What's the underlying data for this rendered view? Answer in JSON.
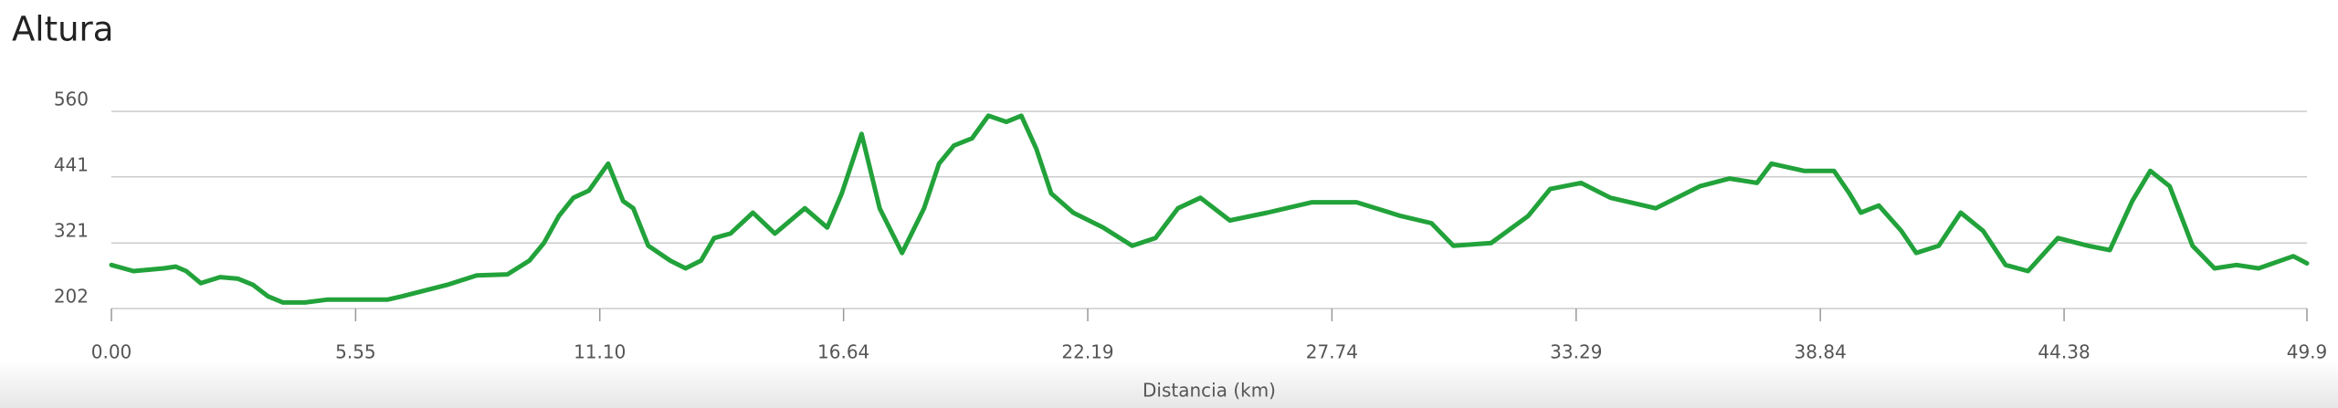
{
  "chart_data": {
    "type": "line",
    "title": "Altura",
    "x_label": "Distancia (km)",
    "color": "#22a23a",
    "grid": true,
    "xlim": [
      0,
      49.9
    ],
    "ylim": [
      202,
      560
    ],
    "yticks": [
      202,
      321,
      441,
      560
    ],
    "xticks": [
      {
        "value": 0,
        "label": "0.00"
      },
      5.55,
      {
        "value": 11.1,
        "label": "11.10"
      },
      16.64,
      22.19,
      27.74,
      33.29,
      38.84,
      44.38,
      49.9
    ],
    "x": [
      0,
      0.5,
      1.19,
      1.46,
      1.7,
      2.03,
      2.47,
      2.88,
      3.22,
      3.56,
      3.9,
      4.4,
      4.9,
      6.27,
      6.6,
      7.63,
      8.3,
      9,
      9.5,
      9.83,
      10.17,
      10.5,
      10.85,
      11.29,
      11.63,
      11.86,
      12.2,
      12.7,
      13.05,
      13.4,
      13.7,
      14.07,
      14.58,
      15.08,
      15.76,
      16.27,
      16.6,
      17.05,
      17.46,
      17.97,
      18.47,
      18.81,
      19.15,
      19.56,
      19.93,
      20.34,
      20.68,
      21.02,
      21.36,
      21.86,
      22.54,
      23.2,
      23.73,
      24.24,
      24.75,
      25.42,
      26.27,
      27.29,
      28.3,
      29.3,
      30,
      30.5,
      31.36,
      32.2,
      32.7,
      33.4,
      34.07,
      35.1,
      36.1,
      36.78,
      37.4,
      37.73,
      38.47,
      39.15,
      39.5,
      39.76,
      40.17,
      40.68,
      41.02,
      41.53,
      42.03,
      42.54,
      43.05,
      43.56,
      44.24,
      44.92,
      45.42,
      45.93,
      46.34,
      46.78,
      47.3,
      47.8,
      48.3,
      48.8,
      49.59,
      49.9
    ],
    "values": [
      281,
      270,
      275,
      278,
      270,
      248,
      259,
      256,
      245,
      224,
      213,
      213,
      218,
      218,
      224,
      245,
      262,
      264,
      289,
      321,
      370,
      403,
      416,
      465,
      397,
      384,
      316,
      289,
      275,
      289,
      330,
      338,
      376,
      338,
      384,
      349,
      411,
      519,
      384,
      303,
      384,
      465,
      498,
      511,
      552,
      541,
      552,
      492,
      411,
      376,
      349,
      316,
      330,
      384,
      403,
      362,
      376,
      395,
      395,
      370,
      357,
      316,
      321,
      370,
      419,
      430,
      403,
      384,
      424,
      438,
      430,
      465,
      452,
      452,
      411,
      376,
      389,
      343,
      303,
      316,
      376,
      343,
      281,
      270,
      330,
      316,
      308,
      397,
      452,
      424,
      316,
      275,
      281,
      275,
      297,
      284
    ]
  }
}
